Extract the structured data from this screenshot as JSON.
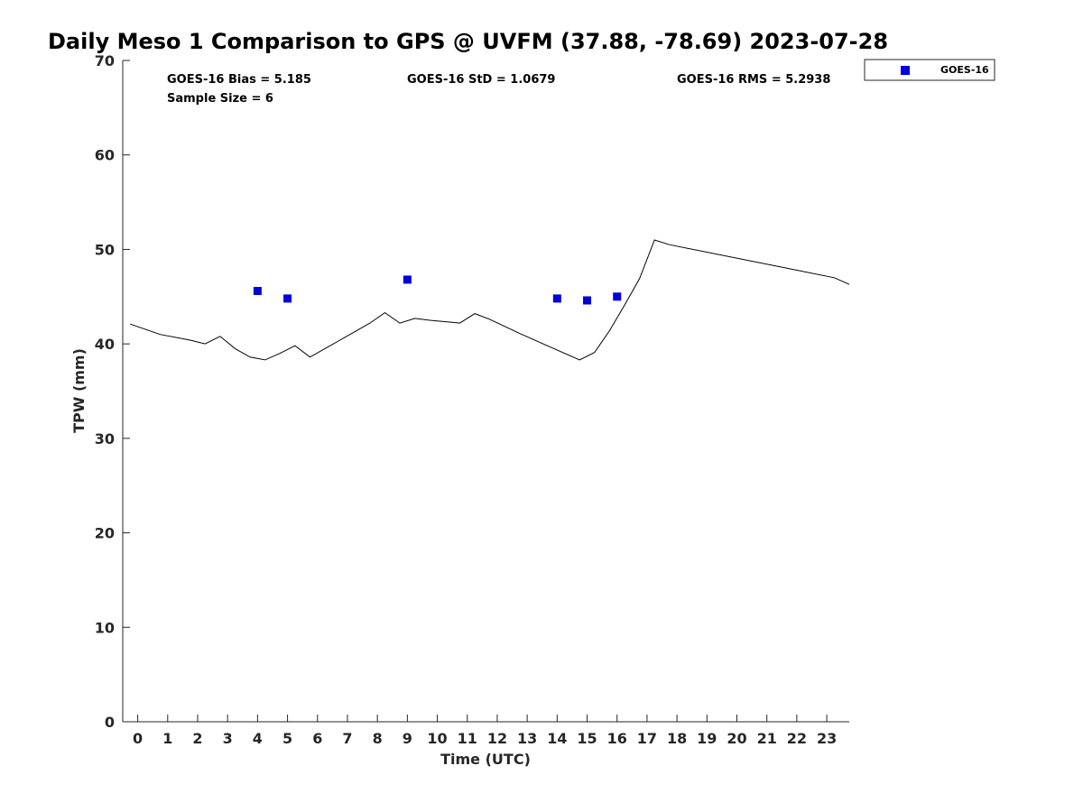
{
  "chart_data": {
    "type": "scatter",
    "title": "Daily Meso 1 Comparison to GPS @ UVFM (37.88, -78.69) 2023-07-28",
    "xlabel": "Time (UTC)",
    "ylabel": "TPW (mm)",
    "xlim": [
      -0.5,
      23.75
    ],
    "ylim": [
      0,
      70
    ],
    "xticks": [
      0,
      1,
      2,
      3,
      4,
      5,
      6,
      7,
      8,
      9,
      10,
      11,
      12,
      13,
      14,
      15,
      16,
      17,
      18,
      19,
      20,
      21,
      22,
      23
    ],
    "xtick_labels": [
      "0",
      "1",
      "2",
      "3",
      "4",
      "5",
      "6",
      "7",
      "8",
      "9",
      "10",
      "11",
      "12",
      "13",
      "14",
      "15",
      "16",
      "17",
      "18",
      "19",
      "20",
      "21",
      "22",
      "23"
    ],
    "yticks": [
      0,
      10,
      20,
      30,
      40,
      50,
      60,
      70
    ],
    "ytick_labels": [
      "0",
      "10",
      "20",
      "30",
      "40",
      "50",
      "60",
      "70"
    ],
    "grid": false,
    "legend_position": "top-right-outside",
    "stats": {
      "bias": "GOES-16 Bias = 5.185",
      "std": "GOES-16 StD = 1.0679",
      "rms": "GOES-16 RMS = 5.2938",
      "sample": "Sample Size = 6"
    },
    "series": [
      {
        "kind": "line",
        "color": "#000000",
        "x": [
          -0.25,
          0.75,
          1.75,
          2.25,
          2.75,
          3.25,
          3.75,
          4.25,
          4.75,
          5.25,
          5.75,
          6.75,
          7.75,
          8.25,
          8.75,
          9.25,
          9.75,
          10.75,
          11.25,
          11.75,
          12.75,
          13.75,
          14.75,
          15.25,
          15.75,
          16.25,
          16.75,
          17.25,
          17.75,
          23.25,
          23.75
        ],
        "y": [
          42.1,
          41.0,
          40.4,
          40.0,
          40.8,
          39.5,
          38.6,
          38.3,
          39.0,
          39.8,
          38.6,
          40.4,
          42.2,
          43.3,
          42.2,
          42.7,
          42.5,
          42.2,
          43.2,
          42.6,
          41.1,
          39.7,
          38.3,
          39.1,
          41.4,
          44.1,
          46.9,
          51.0,
          50.5,
          47.0,
          46.3
        ]
      },
      {
        "kind": "scatter",
        "name": "GOES-16",
        "color": "#0000dd",
        "x": [
          4,
          5,
          9,
          14,
          15,
          16
        ],
        "y": [
          45.6,
          44.8,
          46.8,
          44.8,
          44.6,
          45.0
        ]
      }
    ]
  }
}
